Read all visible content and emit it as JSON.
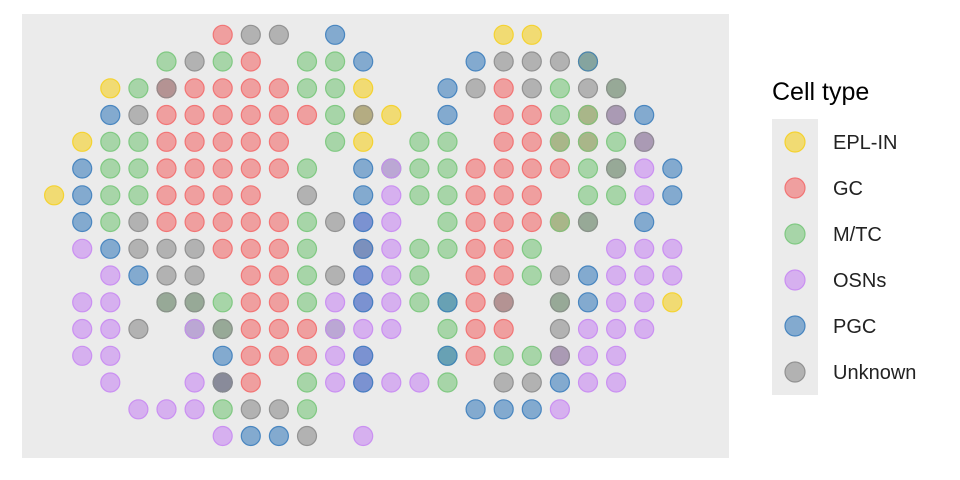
{
  "chart_data": {
    "type": "scatter",
    "title": "",
    "xlabel": "",
    "ylabel": "",
    "grid": false,
    "axes_visible": false,
    "panel_background": "#ebebeb",
    "point_opacity": 0.6,
    "legend": {
      "title": "Cell type",
      "placement": "right"
    },
    "xlim": [
      0,
      24.6
    ],
    "ylim": [
      0,
      15
    ],
    "series": [
      {
        "name": "EPL-IN",
        "color": "#f5d023",
        "points": [
          [
            1,
            9
          ],
          [
            3,
            13
          ],
          [
            2,
            11
          ],
          [
            12,
            13
          ],
          [
            12,
            12
          ],
          [
            12,
            11
          ],
          [
            13,
            12
          ],
          [
            12,
            7
          ],
          [
            17,
            15
          ],
          [
            18,
            15
          ],
          [
            20,
            14
          ],
          [
            23,
            5
          ]
        ]
      },
      {
        "name": "GC",
        "color": "#f26d6d",
        "points": [
          [
            7,
            15
          ],
          [
            8,
            14
          ],
          [
            5,
            13
          ],
          [
            6,
            13
          ],
          [
            7,
            13
          ],
          [
            8,
            13
          ],
          [
            9,
            13
          ],
          [
            5,
            12
          ],
          [
            6,
            12
          ],
          [
            7,
            12
          ],
          [
            8,
            12
          ],
          [
            9,
            12
          ],
          [
            10,
            12
          ],
          [
            5,
            11
          ],
          [
            6,
            11
          ],
          [
            7,
            11
          ],
          [
            8,
            11
          ],
          [
            9,
            11
          ],
          [
            5,
            10
          ],
          [
            6,
            10
          ],
          [
            7,
            10
          ],
          [
            8,
            10
          ],
          [
            9,
            10
          ],
          [
            5,
            9
          ],
          [
            6,
            9
          ],
          [
            7,
            9
          ],
          [
            8,
            9
          ],
          [
            5,
            8
          ],
          [
            6,
            8
          ],
          [
            7,
            8
          ],
          [
            8,
            8
          ],
          [
            9,
            8
          ],
          [
            7,
            7
          ],
          [
            8,
            7
          ],
          [
            9,
            7
          ],
          [
            8,
            6
          ],
          [
            9,
            6
          ],
          [
            8,
            5
          ],
          [
            9,
            5
          ],
          [
            8,
            4
          ],
          [
            9,
            4
          ],
          [
            10,
            4
          ],
          [
            8,
            3
          ],
          [
            9,
            3
          ],
          [
            10,
            3
          ],
          [
            7,
            2
          ],
          [
            8,
            2
          ],
          [
            17,
            13
          ],
          [
            17,
            12
          ],
          [
            18,
            12
          ],
          [
            20,
            12
          ],
          [
            17,
            11
          ],
          [
            18,
            11
          ],
          [
            19,
            11
          ],
          [
            20,
            11
          ],
          [
            16,
            10
          ],
          [
            17,
            10
          ],
          [
            18,
            10
          ],
          [
            19,
            10
          ],
          [
            16,
            9
          ],
          [
            17,
            9
          ],
          [
            18,
            9
          ],
          [
            16,
            8
          ],
          [
            17,
            8
          ],
          [
            18,
            8
          ],
          [
            19,
            8
          ],
          [
            16,
            7
          ],
          [
            17,
            7
          ],
          [
            16,
            6
          ],
          [
            17,
            6
          ],
          [
            16,
            5
          ],
          [
            17,
            5
          ],
          [
            16,
            4
          ],
          [
            17,
            4
          ],
          [
            16,
            3
          ]
        ]
      },
      {
        "name": "M/TC",
        "color": "#79c77b",
        "points": [
          [
            5,
            14
          ],
          [
            7,
            14
          ],
          [
            10,
            14
          ],
          [
            11,
            14
          ],
          [
            4,
            13
          ],
          [
            10,
            13
          ],
          [
            11,
            13
          ],
          [
            19,
            13
          ],
          [
            21,
            13
          ],
          [
            11,
            12
          ],
          [
            19,
            12
          ],
          [
            20,
            12
          ],
          [
            3,
            11
          ],
          [
            4,
            11
          ],
          [
            11,
            11
          ],
          [
            14,
            11
          ],
          [
            15,
            11
          ],
          [
            19,
            11
          ],
          [
            20,
            11
          ],
          [
            21,
            11
          ],
          [
            3,
            10
          ],
          [
            4,
            10
          ],
          [
            10,
            10
          ],
          [
            13,
            10
          ],
          [
            14,
            10
          ],
          [
            15,
            10
          ],
          [
            20,
            10
          ],
          [
            21,
            10
          ],
          [
            3,
            9
          ],
          [
            4,
            9
          ],
          [
            14,
            9
          ],
          [
            15,
            9
          ],
          [
            20,
            9
          ],
          [
            21,
            9
          ],
          [
            3,
            8
          ],
          [
            10,
            8
          ],
          [
            15,
            8
          ],
          [
            19,
            8
          ],
          [
            20,
            8
          ],
          [
            10,
            7
          ],
          [
            14,
            7
          ],
          [
            15,
            7
          ],
          [
            18,
            7
          ],
          [
            10,
            6
          ],
          [
            14,
            6
          ],
          [
            18,
            6
          ],
          [
            5,
            5
          ],
          [
            6,
            5
          ],
          [
            7,
            5
          ],
          [
            10,
            5
          ],
          [
            14,
            5
          ],
          [
            15,
            5
          ],
          [
            19,
            5
          ],
          [
            6,
            4
          ],
          [
            7,
            4
          ],
          [
            11,
            4
          ],
          [
            15,
            4
          ],
          [
            15,
            3
          ],
          [
            17,
            3
          ],
          [
            18,
            3
          ],
          [
            10,
            2
          ],
          [
            15,
            2
          ],
          [
            7,
            1
          ],
          [
            10,
            1
          ]
        ]
      },
      {
        "name": "OSNs",
        "color": "#c889f2",
        "points": [
          [
            21,
            12
          ],
          [
            22,
            11
          ],
          [
            13,
            10
          ],
          [
            22,
            10
          ],
          [
            13,
            9
          ],
          [
            22,
            9
          ],
          [
            12,
            8
          ],
          [
            13,
            8
          ],
          [
            12,
            7
          ],
          [
            13,
            7
          ],
          [
            21,
            7
          ],
          [
            22,
            7
          ],
          [
            23,
            7
          ],
          [
            12,
            6
          ],
          [
            13,
            6
          ],
          [
            21,
            6
          ],
          [
            22,
            6
          ],
          [
            23,
            6
          ],
          [
            2,
            7
          ],
          [
            3,
            6
          ],
          [
            2,
            5
          ],
          [
            3,
            5
          ],
          [
            2,
            4
          ],
          [
            3,
            4
          ],
          [
            2,
            3
          ],
          [
            3,
            3
          ],
          [
            3,
            2
          ],
          [
            4,
            1
          ],
          [
            5,
            1
          ],
          [
            6,
            4
          ],
          [
            6,
            2
          ],
          [
            6,
            1
          ],
          [
            11,
            5
          ],
          [
            11,
            4
          ],
          [
            11,
            3
          ],
          [
            13,
            5
          ],
          [
            12,
            5
          ],
          [
            13,
            4
          ],
          [
            12,
            4
          ],
          [
            12,
            3
          ],
          [
            13,
            2
          ],
          [
            14,
            2
          ],
          [
            11,
            2
          ],
          [
            12,
            2
          ],
          [
            21,
            5
          ],
          [
            22,
            5
          ],
          [
            20,
            4
          ],
          [
            21,
            4
          ],
          [
            22,
            4
          ],
          [
            19,
            3
          ],
          [
            20,
            3
          ],
          [
            21,
            3
          ],
          [
            20,
            2
          ],
          [
            21,
            2
          ],
          [
            19,
            1
          ],
          [
            7,
            0
          ],
          [
            12,
            0
          ]
        ]
      },
      {
        "name": "PGC",
        "color": "#3d7ebd",
        "points": [
          [
            11,
            15
          ],
          [
            12,
            14
          ],
          [
            16,
            14
          ],
          [
            20,
            14
          ],
          [
            3,
            12
          ],
          [
            15,
            13
          ],
          [
            15,
            12
          ],
          [
            22,
            12
          ],
          [
            12,
            10
          ],
          [
            2,
            10
          ],
          [
            23,
            10
          ],
          [
            2,
            9
          ],
          [
            12,
            9
          ],
          [
            23,
            9
          ],
          [
            2,
            8
          ],
          [
            12,
            8
          ],
          [
            22,
            8
          ],
          [
            3,
            7
          ],
          [
            12,
            7
          ],
          [
            4,
            6
          ],
          [
            12,
            6
          ],
          [
            20,
            6
          ],
          [
            12,
            5
          ],
          [
            15,
            5
          ],
          [
            20,
            5
          ],
          [
            7,
            3
          ],
          [
            12,
            3
          ],
          [
            15,
            3
          ],
          [
            7,
            2
          ],
          [
            12,
            2
          ],
          [
            19,
            2
          ],
          [
            16,
            1
          ],
          [
            17,
            1
          ],
          [
            18,
            1
          ],
          [
            8,
            0
          ],
          [
            9,
            0
          ]
        ]
      },
      {
        "name": "Unknown",
        "color": "#8c8c8c",
        "points": [
          [
            8,
            15
          ],
          [
            9,
            15
          ],
          [
            6,
            14
          ],
          [
            17,
            14
          ],
          [
            18,
            14
          ],
          [
            19,
            14
          ],
          [
            5,
            13
          ],
          [
            16,
            13
          ],
          [
            18,
            13
          ],
          [
            20,
            13
          ],
          [
            21,
            13
          ],
          [
            4,
            12
          ],
          [
            12,
            12
          ],
          [
            21,
            12
          ],
          [
            22,
            11
          ],
          [
            21,
            10
          ],
          [
            10,
            9
          ],
          [
            11,
            8
          ],
          [
            20,
            8
          ],
          [
            4,
            8
          ],
          [
            4,
            7
          ],
          [
            5,
            7
          ],
          [
            6,
            7
          ],
          [
            5,
            6
          ],
          [
            6,
            6
          ],
          [
            11,
            6
          ],
          [
            19,
            6
          ],
          [
            5,
            5
          ],
          [
            6,
            5
          ],
          [
            17,
            5
          ],
          [
            19,
            5
          ],
          [
            4,
            4
          ],
          [
            7,
            4
          ],
          [
            19,
            4
          ],
          [
            19,
            3
          ],
          [
            7,
            2
          ],
          [
            17,
            2
          ],
          [
            18,
            2
          ],
          [
            8,
            1
          ],
          [
            9,
            1
          ],
          [
            10,
            0
          ]
        ]
      }
    ]
  }
}
